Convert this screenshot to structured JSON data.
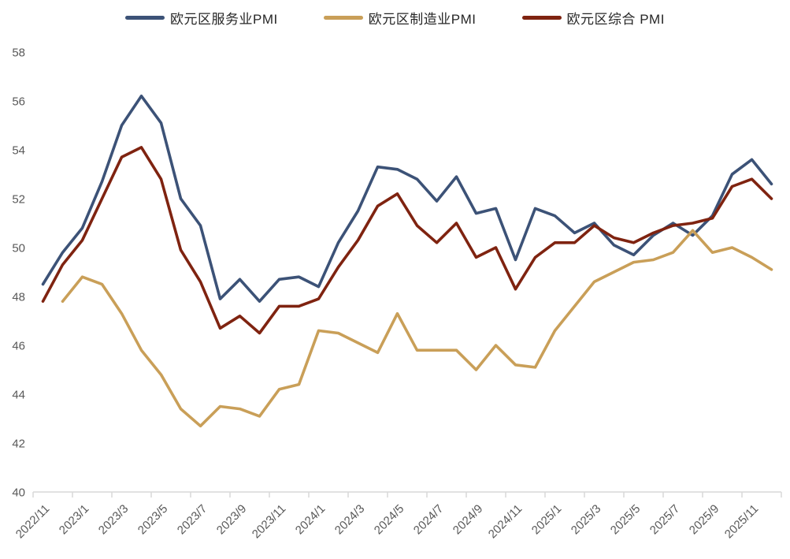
{
  "chart_data": {
    "type": "line",
    "title": "",
    "xlabel": "",
    "ylabel": "",
    "ylim": [
      40,
      58
    ],
    "y_ticks": [
      40,
      42,
      44,
      46,
      48,
      50,
      52,
      54,
      56,
      58
    ],
    "grid": false,
    "legend_position": "top",
    "x": [
      "2022/11",
      "2022/12",
      "2023/1",
      "2023/2",
      "2023/3",
      "2023/4",
      "2023/5",
      "2023/6",
      "2023/7",
      "2023/8",
      "2023/9",
      "2023/10",
      "2023/11",
      "2023/12",
      "2024/1",
      "2024/2",
      "2024/3",
      "2024/4",
      "2024/5",
      "2024/6",
      "2024/7",
      "2024/8",
      "2024/9",
      "2024/10",
      "2024/11",
      "2024/12",
      "2025/1",
      "2025/2",
      "2025/3",
      "2025/4",
      "2025/5",
      "2025/6",
      "2025/7",
      "2025/8",
      "2025/9",
      "2025/10",
      "2025/11",
      "2025/12"
    ],
    "x_tick_labels": [
      "2022/11",
      "2023/1",
      "2023/3",
      "2023/5",
      "2023/7",
      "2023/9",
      "2023/11",
      "2024/1",
      "2024/3",
      "2024/5",
      "2024/7",
      "2024/9",
      "2024/11",
      "2025/1",
      "2025/3",
      "2025/5",
      "2025/7",
      "2025/9",
      "2025/11"
    ],
    "series": [
      {
        "name": "欧元区服务业PMI",
        "color": "#3C5277",
        "values": [
          48.5,
          49.8,
          50.8,
          52.7,
          55.0,
          56.2,
          55.1,
          52.0,
          50.9,
          47.9,
          48.7,
          47.8,
          48.7,
          48.8,
          48.4,
          50.2,
          51.5,
          53.3,
          53.2,
          52.8,
          51.9,
          52.9,
          51.4,
          51.6,
          49.5,
          51.6,
          51.3,
          50.6,
          51.0,
          50.1,
          49.7,
          50.5,
          51.0,
          50.5,
          51.3,
          53.0,
          53.6,
          52.6
        ]
      },
      {
        "name": "欧元区制造业PMI",
        "color": "#C99F58",
        "values": [
          null,
          47.8,
          48.8,
          48.5,
          47.3,
          45.8,
          44.8,
          43.4,
          42.7,
          43.5,
          43.4,
          43.1,
          44.2,
          44.4,
          46.6,
          46.5,
          46.1,
          45.7,
          47.3,
          45.8,
          45.8,
          45.8,
          45.0,
          46.0,
          45.2,
          45.1,
          46.6,
          47.6,
          48.6,
          49.0,
          49.4,
          49.5,
          49.8,
          50.7,
          49.8,
          50.0,
          49.6,
          49.1
        ]
      },
      {
        "name": "欧元区综合 PMI",
        "color": "#7F2310",
        "values": [
          47.8,
          49.3,
          50.3,
          52.0,
          53.7,
          54.1,
          52.8,
          49.9,
          48.6,
          46.7,
          47.2,
          46.5,
          47.6,
          47.6,
          47.9,
          49.2,
          50.3,
          51.7,
          52.2,
          50.9,
          50.2,
          51.0,
          49.6,
          50.0,
          48.3,
          49.6,
          50.2,
          50.2,
          50.9,
          50.4,
          50.2,
          50.6,
          50.9,
          51.0,
          51.2,
          52.5,
          52.8,
          52.0
        ]
      }
    ],
    "axis_colors": {
      "axis_line": "#D9D9D9",
      "tick_label": "#595959",
      "legend_text": "#262626"
    }
  }
}
